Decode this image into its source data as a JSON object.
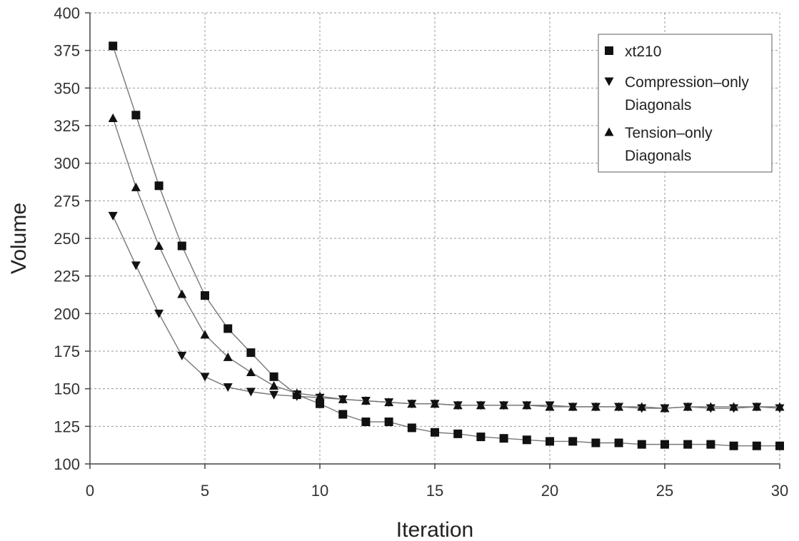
{
  "chart_data": {
    "type": "line",
    "title": "",
    "xlabel": "Iteration",
    "ylabel": "Volume",
    "xlim": [
      0,
      30
    ],
    "ylim": [
      100,
      400
    ],
    "xticks": [
      0,
      5,
      10,
      15,
      20,
      25,
      30
    ],
    "yticks": [
      100,
      125,
      150,
      175,
      200,
      225,
      250,
      275,
      300,
      325,
      350,
      375,
      400
    ],
    "grid": true,
    "legend_position": "top-right",
    "x": [
      1,
      2,
      3,
      4,
      5,
      6,
      7,
      8,
      9,
      10,
      11,
      12,
      13,
      14,
      15,
      16,
      17,
      18,
      19,
      20,
      21,
      22,
      23,
      24,
      25,
      26,
      27,
      28,
      29,
      30
    ],
    "series": [
      {
        "name": "xt210",
        "legend_lines": [
          "xt210"
        ],
        "marker": "square",
        "values": [
          378,
          332,
          285,
          245,
          212,
          190,
          174,
          158,
          146,
          140,
          133,
          128,
          128,
          124,
          121,
          120,
          118,
          117,
          116,
          115,
          115,
          114,
          114,
          113,
          113,
          113,
          113,
          112,
          112,
          112
        ]
      },
      {
        "name": "Compression-only Diagonals",
        "legend_lines": [
          "Compression–only",
          "Diagonals"
        ],
        "marker": "triangle-down",
        "values": [
          265,
          232,
          200,
          172,
          158,
          151,
          148,
          146,
          145,
          144,
          143,
          142,
          141,
          140,
          140,
          139,
          139,
          139,
          139,
          139,
          138,
          138,
          138,
          137,
          137,
          138,
          137,
          137,
          138,
          137
        ]
      },
      {
        "name": "Tension-only Diagonals",
        "legend_lines": [
          "Tension–only",
          "Diagonals"
        ],
        "marker": "triangle-up",
        "values": [
          330,
          284,
          245,
          213,
          186,
          171,
          161,
          152,
          147,
          145,
          143,
          142,
          141,
          140,
          140,
          139,
          139,
          139,
          139,
          138,
          138,
          138,
          138,
          138,
          137,
          138,
          138,
          138,
          138,
          138
        ]
      }
    ]
  }
}
